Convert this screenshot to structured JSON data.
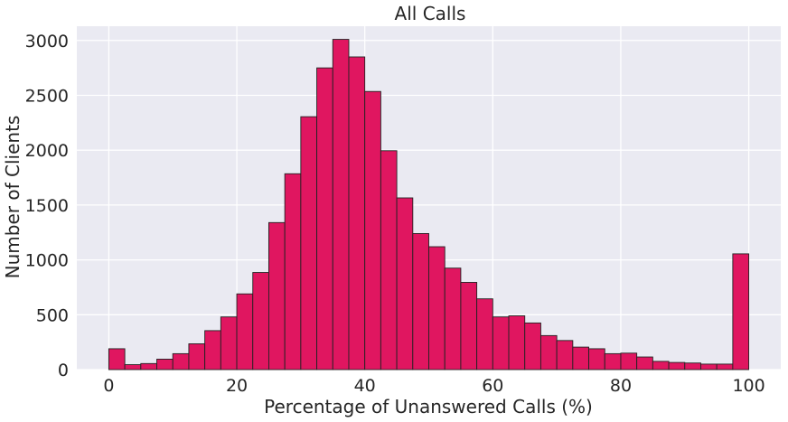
{
  "chart_data": {
    "type": "bar",
    "title": "All Calls",
    "xlabel": "Percentage of Unanswered Calls (%)",
    "ylabel": "Number of Clients",
    "xlim": [
      -5,
      105
    ],
    "ylim": [
      0,
      3130
    ],
    "xticks": [
      0,
      20,
      40,
      60,
      80,
      100
    ],
    "yticks": [
      0,
      500,
      1000,
      1500,
      2000,
      2500,
      3000
    ],
    "bin_edges": [
      0,
      2.5,
      5,
      7.5,
      10,
      12.5,
      15,
      17.5,
      20,
      22.5,
      25,
      27.5,
      30,
      32.5,
      35,
      37.5,
      40,
      42.5,
      45,
      47.5,
      50,
      52.5,
      55,
      57.5,
      60,
      62.5,
      65,
      67.5,
      70,
      72.5,
      75,
      77.5,
      80,
      82.5,
      85,
      87.5,
      90,
      92.5,
      95,
      97.5,
      100
    ],
    "values": [
      190,
      45,
      55,
      95,
      145,
      235,
      355,
      480,
      690,
      885,
      1340,
      1785,
      2305,
      2750,
      3010,
      2850,
      2535,
      1995,
      1565,
      1240,
      1120,
      925,
      795,
      645,
      480,
      490,
      425,
      310,
      265,
      205,
      190,
      145,
      150,
      115,
      75,
      65,
      60,
      50,
      50,
      1055
    ],
    "bar_color": "#e01660",
    "bar_edge_color": "#222222",
    "background_color": "#eaeaf2",
    "grid": true,
    "grid_color": "#ffffff"
  }
}
